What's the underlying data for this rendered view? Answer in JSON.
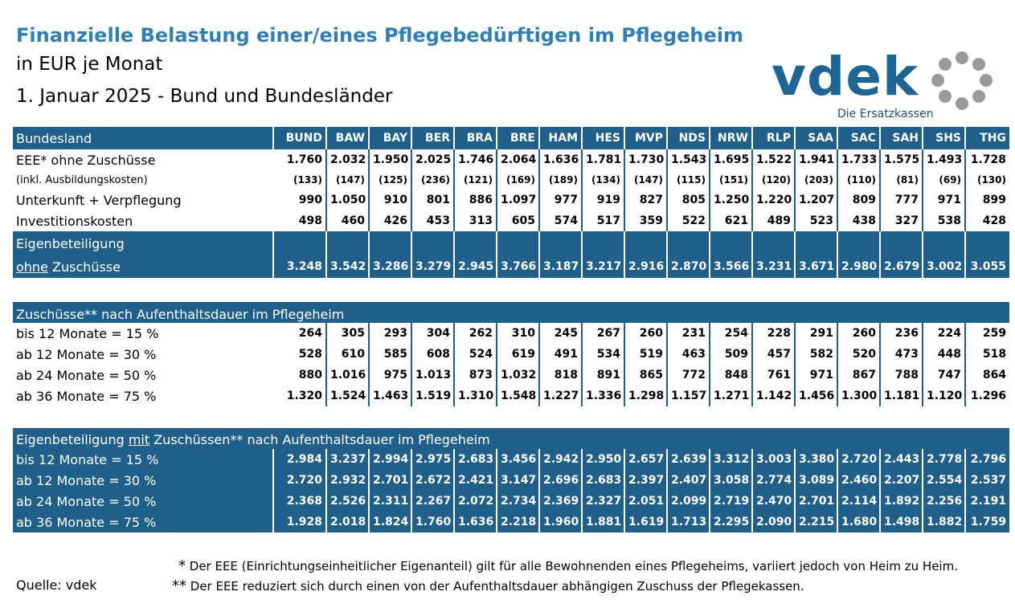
{
  "header": {
    "title": "Finanzielle Belastung einer/eines Pflegebedürftigen im Pflegeheim",
    "subtitle": "in EUR je Monat",
    "date_line": "1. Januar 2025 - Bund und Bundesländer"
  },
  "logo": {
    "word": "vdek",
    "tagline": "Die Ersatzkassen"
  },
  "colors": {
    "title": "#2f7fb5",
    "band": "#1f5f8a",
    "logo": "#1d6592"
  },
  "columns_label": "Bundesland",
  "columns": [
    "BUND",
    "BAW",
    "BAY",
    "BER",
    "BRA",
    "BRE",
    "HAM",
    "HES",
    "MVP",
    "NDS",
    "NRW",
    "RLP",
    "SAA",
    "SAC",
    "SAH",
    "SHS",
    "THG"
  ],
  "eee": {
    "label": "EEE* ohne Zuschüsse",
    "values": [
      "1.760",
      "2.032",
      "1.950",
      "2.025",
      "1.746",
      "2.064",
      "1.636",
      "1.781",
      "1.730",
      "1.543",
      "1.695",
      "1.522",
      "1.941",
      "1.733",
      "1.575",
      "1.493",
      "1.728"
    ],
    "sub_label": "(inkl. Ausbildungskosten)",
    "sub_values": [
      "(133)",
      "(147)",
      "(125)",
      "(236)",
      "(121)",
      "(169)",
      "(189)",
      "(134)",
      "(147)",
      "(115)",
      "(151)",
      "(120)",
      "(203)",
      "(110)",
      "(81)",
      "(69)",
      "(130)"
    ]
  },
  "unterkunft": {
    "label": "Unterkunft + Verpflegung",
    "values": [
      "990",
      "1.050",
      "910",
      "801",
      "886",
      "1.097",
      "977",
      "919",
      "827",
      "805",
      "1.250",
      "1.220",
      "1.207",
      "809",
      "777",
      "971",
      "899"
    ]
  },
  "investition": {
    "label": "Investitionskosten",
    "values": [
      "498",
      "460",
      "426",
      "453",
      "313",
      "605",
      "574",
      "517",
      "359",
      "522",
      "621",
      "489",
      "523",
      "438",
      "327",
      "538",
      "428"
    ]
  },
  "eigen_ohne": {
    "label_line1": "Eigenbeteiligung",
    "label_ohne": "ohne",
    "label_rest": " Zuschüsse",
    "values": [
      "3.248",
      "3.542",
      "3.286",
      "3.279",
      "2.945",
      "3.766",
      "3.187",
      "3.217",
      "2.916",
      "2.870",
      "3.566",
      "3.231",
      "3.671",
      "2.980",
      "2.679",
      "3.002",
      "3.055"
    ]
  },
  "zuschuesse": {
    "heading": "Zuschüsse** nach Aufenthaltsdauer im Pflegeheim",
    "rows": [
      {
        "label": "bis 12 Monate = 15 %",
        "values": [
          "264",
          "305",
          "293",
          "304",
          "262",
          "310",
          "245",
          "267",
          "260",
          "231",
          "254",
          "228",
          "291",
          "260",
          "236",
          "224",
          "259"
        ]
      },
      {
        "label": "ab 12 Monate = 30 %",
        "values": [
          "528",
          "610",
          "585",
          "608",
          "524",
          "619",
          "491",
          "534",
          "519",
          "463",
          "509",
          "457",
          "582",
          "520",
          "473",
          "448",
          "518"
        ]
      },
      {
        "label": "ab 24 Monate = 50 %",
        "values": [
          "880",
          "1.016",
          "975",
          "1.013",
          "873",
          "1.032",
          "818",
          "891",
          "865",
          "772",
          "848",
          "761",
          "971",
          "867",
          "788",
          "747",
          "864"
        ]
      },
      {
        "label": "ab 36 Monate = 75 %",
        "values": [
          "1.320",
          "1.524",
          "1.463",
          "1.519",
          "1.310",
          "1.548",
          "1.227",
          "1.336",
          "1.298",
          "1.157",
          "1.271",
          "1.142",
          "1.456",
          "1.300",
          "1.181",
          "1.120",
          "1.296"
        ]
      }
    ]
  },
  "eigen_mit": {
    "heading_pre": "Eigenbeteiligung ",
    "heading_mit": "mit",
    "heading_post": " Zuschüssen** nach Aufenthaltsdauer im Pflegeheim",
    "rows": [
      {
        "label": "bis 12 Monate = 15 %",
        "values": [
          "2.984",
          "3.237",
          "2.994",
          "2.975",
          "2.683",
          "3.456",
          "2.942",
          "2.950",
          "2.657",
          "2.639",
          "3.312",
          "3.003",
          "3.380",
          "2.720",
          "2.443",
          "2.778",
          "2.796"
        ]
      },
      {
        "label": "ab 12 Monate  = 30 %",
        "values": [
          "2.720",
          "2.932",
          "2.701",
          "2.672",
          "2.421",
          "3.147",
          "2.696",
          "2.683",
          "2.397",
          "2.407",
          "3.058",
          "2.774",
          "3.089",
          "2.460",
          "2.207",
          "2.554",
          "2.537"
        ]
      },
      {
        "label": "ab 24 Monate  = 50 %",
        "values": [
          "2.368",
          "2.526",
          "2.311",
          "2.267",
          "2.072",
          "2.734",
          "2.369",
          "2.327",
          "2.051",
          "2.099",
          "2.719",
          "2.470",
          "2.701",
          "2.114",
          "1.892",
          "2.256",
          "2.191"
        ]
      },
      {
        "label": "ab 36 Monate  = 75 %",
        "values": [
          "1.928",
          "2.018",
          "1.824",
          "1.760",
          "1.636",
          "2.218",
          "1.960",
          "1.881",
          "1.619",
          "1.713",
          "2.295",
          "2.090",
          "2.215",
          "1.680",
          "1.498",
          "1.882",
          "1.759"
        ]
      }
    ]
  },
  "footnotes": {
    "f1_mark": "*",
    "f1_text": " Der EEE (Einrichtungseinheitlicher Eigenanteil) gilt für alle Bewohnenden eines Pflegeheims, variiert jedoch von Heim zu Heim.",
    "f2_mark": "**",
    "f2_text": " Der EEE reduziert sich durch einen von der Aufenthaltsdauer abhängigen Zuschuss der Pflegekassen."
  },
  "source": "Quelle: vdek"
}
